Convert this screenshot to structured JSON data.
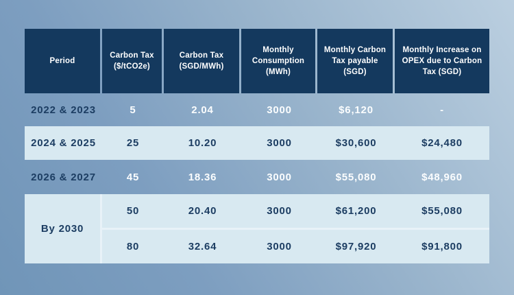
{
  "table": {
    "header": [
      "Period",
      "Carbon Tax\n($/tCO2e)",
      "Carbon Tax\n(SGD/MWh)",
      "Monthly\nConsumption\n(MWh)",
      "Monthly Carbon\nTax payable\n(SGD)",
      "Monthly Increase on\nOPEX due to Carbon\nTax (SGD)"
    ],
    "rows": [
      {
        "period": "2022 & 2023",
        "values": [
          "5",
          "2.04",
          "3000",
          "$6,120",
          "-"
        ]
      },
      {
        "period": "2024 & 2025",
        "values": [
          "25",
          "10.20",
          "3000",
          "$30,600",
          "$24,480"
        ]
      },
      {
        "period": "2026 & 2027",
        "values": [
          "45",
          "18.36",
          "3000",
          "$55,080",
          "$48,960"
        ]
      }
    ],
    "by_2030": {
      "period": "By 2030",
      "sub_rows": [
        [
          "50",
          "20.40",
          "3000",
          "$61,200",
          "$55,080"
        ],
        [
          "80",
          "32.64",
          "3000",
          "$97,920",
          "$91,800"
        ]
      ]
    }
  },
  "chart_data": {
    "type": "table",
    "columns": [
      "Period",
      "Carbon Tax ($/tCO2e)",
      "Carbon Tax (SGD/MWh)",
      "Monthly Consumption (MWh)",
      "Monthly Carbon Tax payable (SGD)",
      "Monthly Increase on OPEX due to Carbon Tax (SGD)"
    ],
    "rows": [
      [
        "2022 & 2023",
        5,
        2.04,
        3000,
        "$6,120",
        "-"
      ],
      [
        "2024 & 2025",
        25,
        10.2,
        3000,
        "$30,600",
        "$24,480"
      ],
      [
        "2026 & 2027",
        45,
        18.36,
        3000,
        "$55,080",
        "$48,960"
      ],
      [
        "By 2030",
        50,
        20.4,
        3000,
        "$61,200",
        "$55,080"
      ],
      [
        "By 2030",
        80,
        32.64,
        3000,
        "$97,920",
        "$91,800"
      ]
    ]
  },
  "colors": {
    "header_bg": "#14395E",
    "light_row_bg": "#D8E9F1",
    "navy_text": "#1C3D62",
    "white_text": "#FFFFFF",
    "row_divider": "#E8F2F8",
    "background_gradient_start": "#7095B8",
    "background_gradient_end": "#BBCFE0"
  }
}
